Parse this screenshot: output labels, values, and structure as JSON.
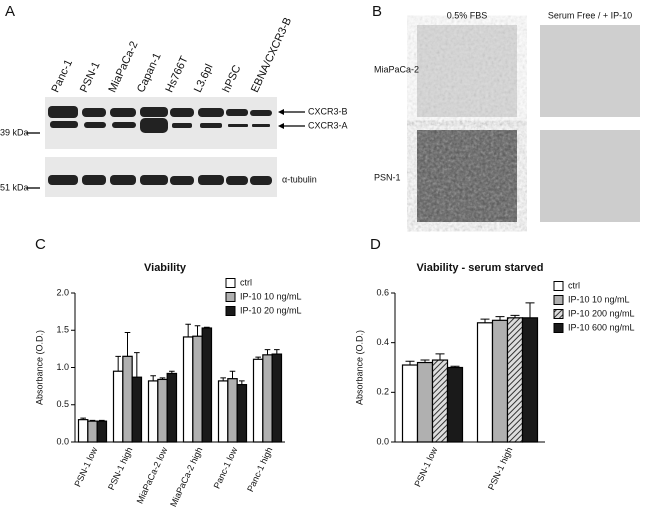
{
  "panels": {
    "a": {
      "label": "A",
      "lanes": [
        "Panc-1",
        "PSN-1",
        "MiaPaCa-2",
        "Capan-1",
        "Hs766T",
        "L3.6pl",
        "hPSC",
        "EBNA/CXCR3-B"
      ],
      "bands": [
        "CXCR3-B",
        "CXCR3-A",
        "α-tubulin"
      ],
      "markers": [
        "39 kDa",
        "51 kDa"
      ]
    },
    "b": {
      "label": "B",
      "columns": [
        "0.5% FBS",
        "Serum Free / + IP-10"
      ],
      "rows": [
        "MiaPaCa-2",
        "PSN-1"
      ]
    },
    "c": {
      "label": "C"
    },
    "d": {
      "label": "D"
    }
  },
  "chart_data": [
    {
      "type": "bar",
      "title": "Viability",
      "y_label": "Absorbance (O.D.)",
      "categories": [
        "PSN-1 low",
        "PSN-1 high",
        "MiaPaCa-2 low",
        "MiaPaCa-2 high",
        "Panc-1 low",
        "Panc-1 high"
      ],
      "series": [
        {
          "name": "ctrl",
          "color": "#ffffff",
          "values": [
            0.3,
            0.95,
            0.82,
            1.41,
            0.82,
            1.11
          ],
          "errors": [
            0.02,
            0.2,
            0.07,
            0.17,
            0.04,
            0.03
          ]
        },
        {
          "name": "IP-10 10 ng/mL",
          "color": "#b0b0b0",
          "values": [
            0.28,
            1.15,
            0.84,
            1.42,
            0.85,
            1.17
          ],
          "errors": [
            0.01,
            0.32,
            0.02,
            0.14,
            0.1,
            0.07
          ]
        },
        {
          "name": "IP-10 20 ng/mL",
          "color": "#1a1a1a",
          "values": [
            0.28,
            0.87,
            0.92,
            1.53,
            0.77,
            1.18
          ],
          "errors": [
            0.01,
            0.33,
            0.03,
            0.01,
            0.05,
            0.06
          ]
        }
      ],
      "ylim": [
        0,
        2.0
      ],
      "yticks": [
        {
          "value": 0,
          "label": "0.0"
        },
        0.5,
        {
          "value": 1,
          "label": "1.0"
        },
        1.5,
        {
          "value": 2,
          "label": "2.0"
        }
      ]
    },
    {
      "type": "bar",
      "title": "Viability - serum starved",
      "y_label": "Absorbance (O.D.)",
      "categories": [
        "PSN-1 low",
        "PSN-1 high"
      ],
      "series": [
        {
          "name": "ctrl",
          "color": "#ffffff",
          "values": [
            0.31,
            0.48
          ],
          "errors": [
            0.015,
            0.015
          ]
        },
        {
          "name": "IP-10 10 ng/mL",
          "color": "#b0b0b0",
          "values": [
            0.32,
            0.49
          ],
          "errors": [
            0.01,
            0.015
          ]
        },
        {
          "name": "IP-10 200 ng/mL",
          "color": "#808080",
          "hatch": true,
          "values": [
            0.33,
            0.5
          ],
          "errors": [
            0.025,
            0.01
          ]
        },
        {
          "name": "IP-10 600 ng/mL",
          "color": "#1a1a1a",
          "values": [
            0.3,
            0.5
          ],
          "errors": [
            0.005,
            0.06
          ]
        }
      ],
      "ylim": [
        0,
        0.6
      ],
      "yticks": [
        {
          "value": 0,
          "label": "0.0"
        },
        0.2,
        0.4,
        0.6
      ]
    }
  ]
}
